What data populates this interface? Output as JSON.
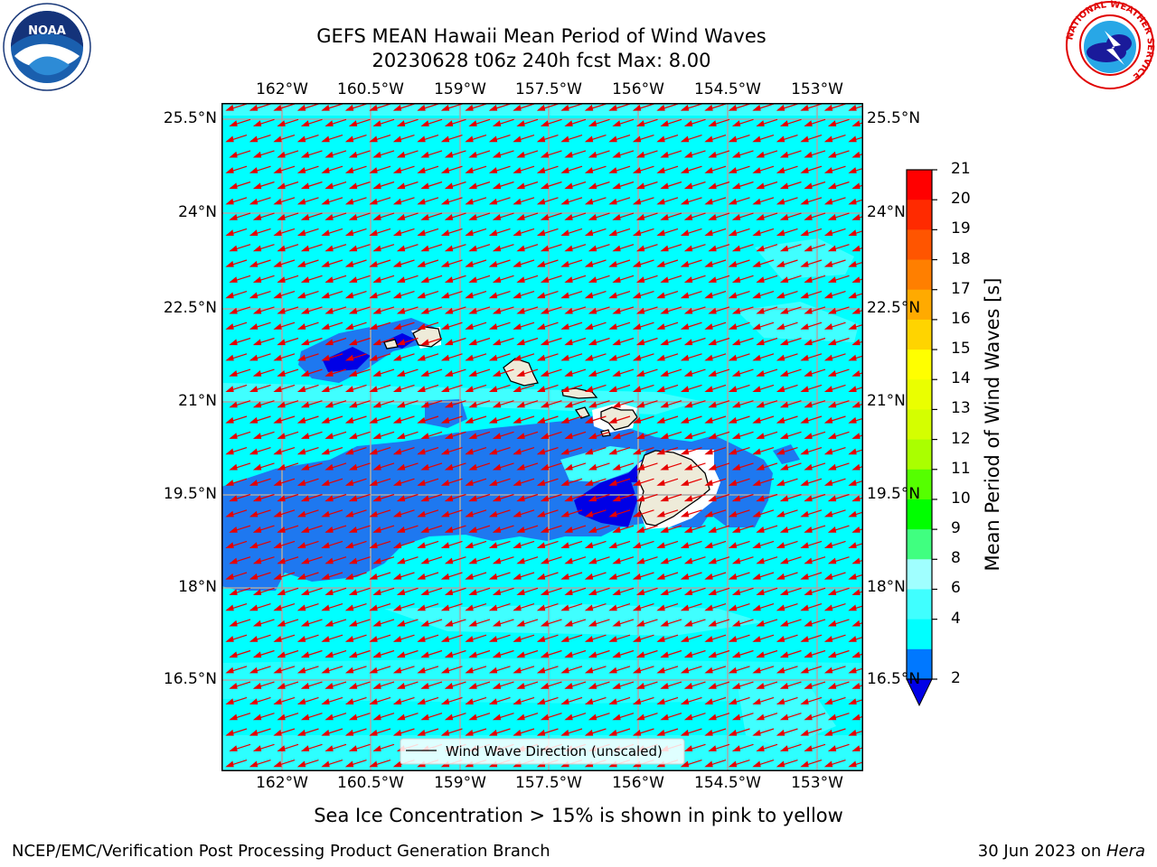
{
  "title": {
    "line1": "GEFS MEAN Hawaii Mean Period of Wind Waves",
    "line2": "20230628 t06z 240h fcst   Max: 8.00"
  },
  "logos": {
    "left": {
      "icon": "noaa-logo",
      "text": "NOAA"
    },
    "right": {
      "icon": "nws-logo",
      "ring_text": "NATIONAL WEATHER SERVICE"
    }
  },
  "map": {
    "lon_labels": [
      "162°W",
      "160.5°W",
      "159°W",
      "157.5°W",
      "156°W",
      "154.5°W",
      "153°W"
    ],
    "lat_labels": [
      "25.5°N",
      "24°N",
      "22.5°N",
      "21°N",
      "19.5°N",
      "18°N",
      "16.5°N"
    ],
    "legend_label": "Wind Wave Direction (unscaled)",
    "colors": {
      "ocean_light": "#00ffff",
      "ocean_mid": "#40ffff",
      "ocean_blue": "#1e78f0",
      "ocean_deep": "#0000e6",
      "land": "#eeebd9",
      "arrow": "#e60000",
      "grid": "#b0b0b0"
    }
  },
  "colorbar": {
    "title": "Mean Period of Wind Waves [s]",
    "ticks": [
      "21",
      "20",
      "19",
      "18",
      "17",
      "16",
      "15",
      "14",
      "13",
      "12",
      "11",
      "10",
      "9",
      "8",
      "6",
      "4",
      "2"
    ],
    "colors": [
      "#ff0000",
      "#ff2a00",
      "#ff5500",
      "#ff7f00",
      "#ffaa00",
      "#ffd400",
      "#ffff00",
      "#eaff00",
      "#d4ff00",
      "#aaff00",
      "#55ff00",
      "#00ff00",
      "#40ff80",
      "#a0ffff",
      "#40ffff",
      "#00ffff",
      "#0078ff"
    ],
    "under_color": "#0000e6"
  },
  "caption": "Sea Ice Concentration > 15% is shown in pink to yellow",
  "footer": {
    "left": "NCEP/EMC/Verification Post Processing Product Generation Branch",
    "right_date": "30 Jun 2023 on ",
    "right_machine": "Hera"
  }
}
